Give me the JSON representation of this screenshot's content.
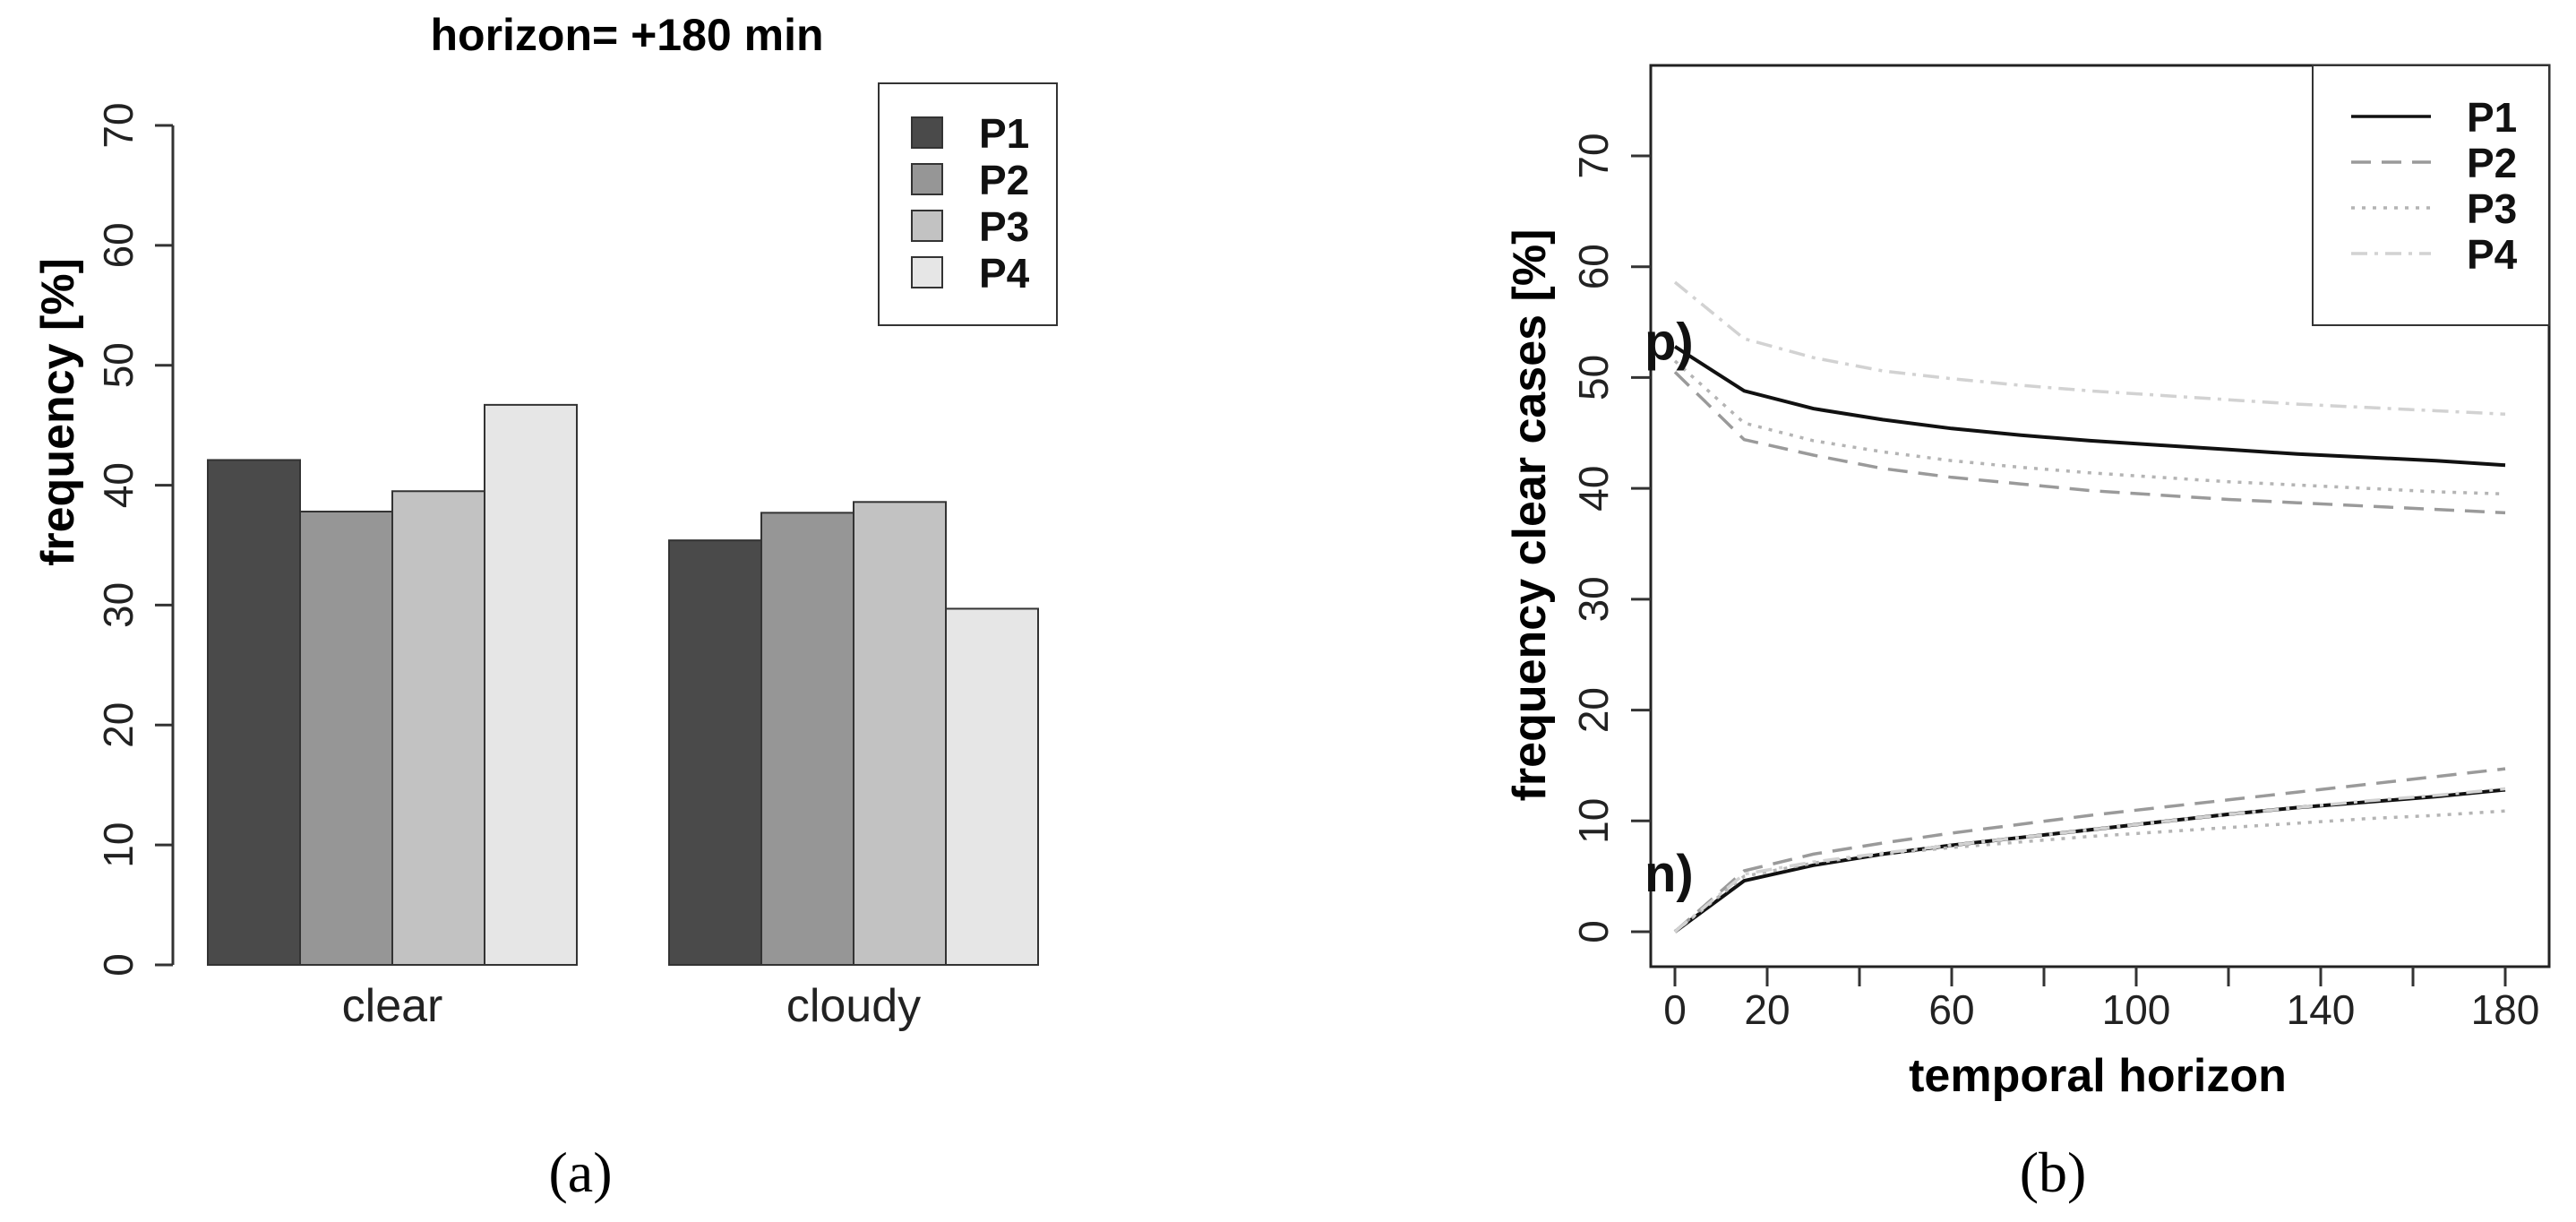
{
  "chart_data": [
    {
      "type": "bar",
      "title": "horizon= +180 min",
      "ylabel": "frequency [%]",
      "xlabel": "",
      "ylim": [
        0,
        70
      ],
      "yticks": [
        0,
        10,
        20,
        30,
        40,
        50,
        60,
        70
      ],
      "categories": [
        "clear",
        "cloudy"
      ],
      "series": [
        {
          "name": "P1",
          "values": [
            42.1,
            35.4
          ],
          "color": "#4a4a4a"
        },
        {
          "name": "P2",
          "values": [
            37.8,
            37.7
          ],
          "color": "#969696"
        },
        {
          "name": "P3",
          "values": [
            39.5,
            38.6
          ],
          "color": "#c2c2c2"
        },
        {
          "name": "P4",
          "values": [
            46.7,
            29.7
          ],
          "color": "#e6e6e6"
        }
      ],
      "legend": "top-right",
      "caption": "(a)"
    },
    {
      "type": "line",
      "ylabel": "frequency clear cases [%]",
      "xlabel": "temporal horizon",
      "xlim": [
        0,
        180
      ],
      "ylim": [
        0,
        70
      ],
      "xticks": [
        0,
        20,
        60,
        100,
        140,
        180
      ],
      "yticks": [
        0,
        10,
        20,
        30,
        40,
        50,
        60,
        70
      ],
      "x": [
        0,
        15,
        30,
        45,
        60,
        75,
        90,
        105,
        120,
        135,
        150,
        165,
        180
      ],
      "annotations": [
        {
          "text": "p)",
          "y": 53
        },
        {
          "text": "n)",
          "y": 5
        }
      ],
      "series": [
        {
          "name": "P1",
          "group": "p",
          "style": "solid",
          "color": "#111111",
          "values": [
            52.8,
            48.8,
            47.2,
            46.2,
            45.4,
            44.8,
            44.3,
            43.9,
            43.5,
            43.1,
            42.8,
            42.5,
            42.1
          ]
        },
        {
          "name": "P2",
          "group": "p",
          "style": "dashed",
          "color": "#9a9a9a",
          "values": [
            50.5,
            44.4,
            43.0,
            41.8,
            41.0,
            40.4,
            39.8,
            39.4,
            39.0,
            38.7,
            38.4,
            38.1,
            37.8
          ]
        },
        {
          "name": "P3",
          "group": "p",
          "style": "dotted",
          "color": "#b4b4b4",
          "values": [
            51.5,
            45.9,
            44.3,
            43.3,
            42.5,
            41.9,
            41.4,
            41.0,
            40.6,
            40.3,
            40.0,
            39.7,
            39.5
          ]
        },
        {
          "name": "P4",
          "group": "p",
          "style": "dotdash",
          "color": "#d2d2d2",
          "values": [
            58.6,
            53.5,
            51.8,
            50.6,
            49.9,
            49.3,
            48.8,
            48.4,
            48.0,
            47.6,
            47.3,
            47.0,
            46.7
          ]
        },
        {
          "name": "P1",
          "group": "n",
          "style": "solid",
          "color": "#111111",
          "values": [
            0,
            4.6,
            6.0,
            7.0,
            7.8,
            8.5,
            9.2,
            9.9,
            10.6,
            11.2,
            11.7,
            12.2,
            12.8
          ]
        },
        {
          "name": "P2",
          "group": "n",
          "style": "dashed",
          "color": "#9a9a9a",
          "values": [
            0,
            5.5,
            7.0,
            8.0,
            8.9,
            9.7,
            10.5,
            11.2,
            11.9,
            12.6,
            13.3,
            14.0,
            14.7
          ]
        },
        {
          "name": "P3",
          "group": "n",
          "style": "dotted",
          "color": "#b4b4b4",
          "values": [
            0,
            5.0,
            6.2,
            7.0,
            7.6,
            8.1,
            8.6,
            9.0,
            9.4,
            9.8,
            10.2,
            10.5,
            10.9
          ]
        },
        {
          "name": "P4",
          "group": "n",
          "style": "dotdash",
          "color": "#d2d2d2",
          "values": [
            0,
            5.2,
            6.3,
            7.1,
            7.8,
            8.5,
            9.2,
            9.9,
            10.6,
            11.2,
            11.8,
            12.3,
            12.9
          ]
        }
      ],
      "legend": "top-right",
      "caption": "(b)"
    }
  ]
}
